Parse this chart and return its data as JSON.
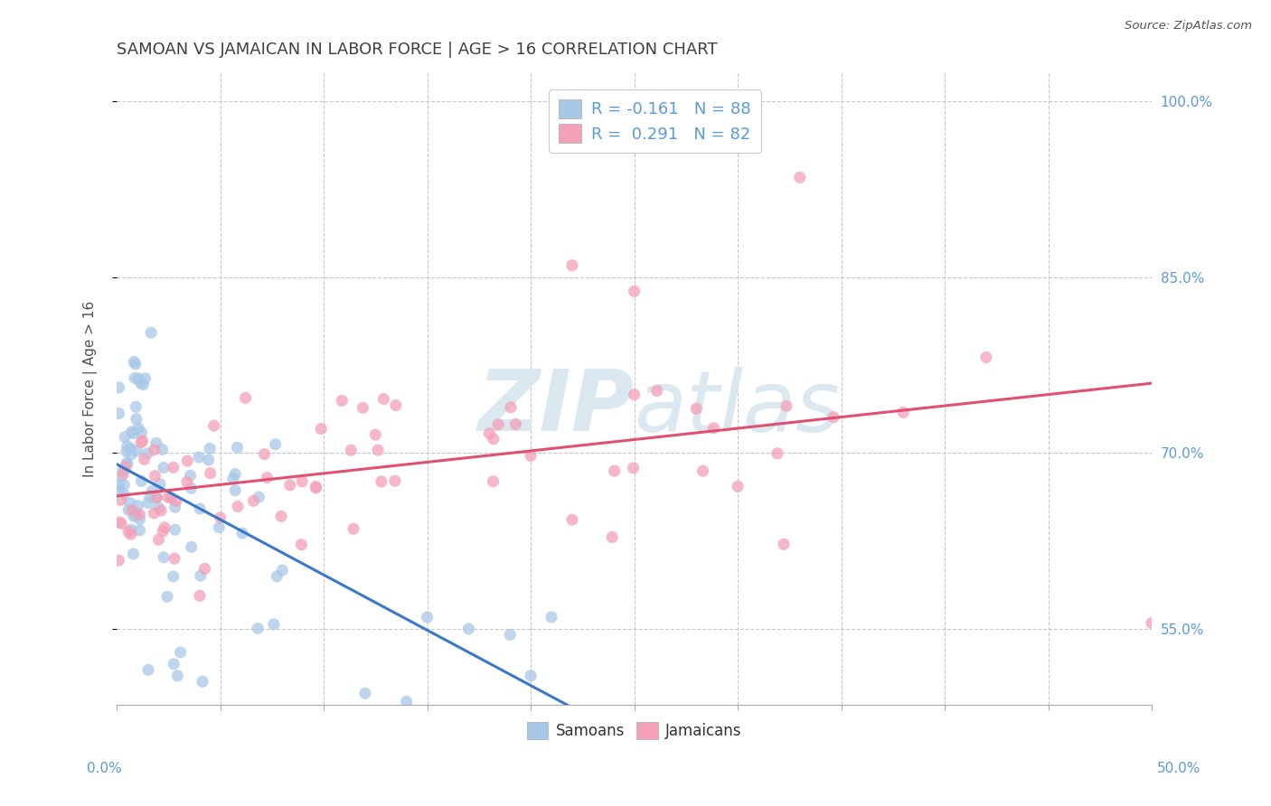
{
  "title": "SAMOAN VS JAMAICAN IN LABOR FORCE | AGE > 16 CORRELATION CHART",
  "source": "Source: ZipAtlas.com",
  "ylabel": "In Labor Force | Age > 16",
  "xlim": [
    0.0,
    0.5
  ],
  "ylim": [
    0.485,
    1.025
  ],
  "ytick_labels": [
    "55.0%",
    "70.0%",
    "85.0%",
    "100.0%"
  ],
  "ytick_vals": [
    0.55,
    0.7,
    0.85,
    1.0
  ],
  "xtick_minor_vals": [
    0.05,
    0.1,
    0.15,
    0.2,
    0.25,
    0.3,
    0.35,
    0.4,
    0.45
  ],
  "samoans_R": -0.161,
  "samoans_N": 88,
  "jamaicans_R": 0.291,
  "jamaicans_N": 82,
  "samoan_color": "#a8c8e8",
  "jamaican_color": "#f4a0b8",
  "samoan_line_color": "#3a78c9",
  "jamaican_line_color": "#e05070",
  "background_color": "#ffffff",
  "grid_color": "#c8c8c8",
  "watermark_color": "#dce8f0",
  "tick_color": "#5b9bd5",
  "title_color": "#404040",
  "ylabel_color": "#505050"
}
